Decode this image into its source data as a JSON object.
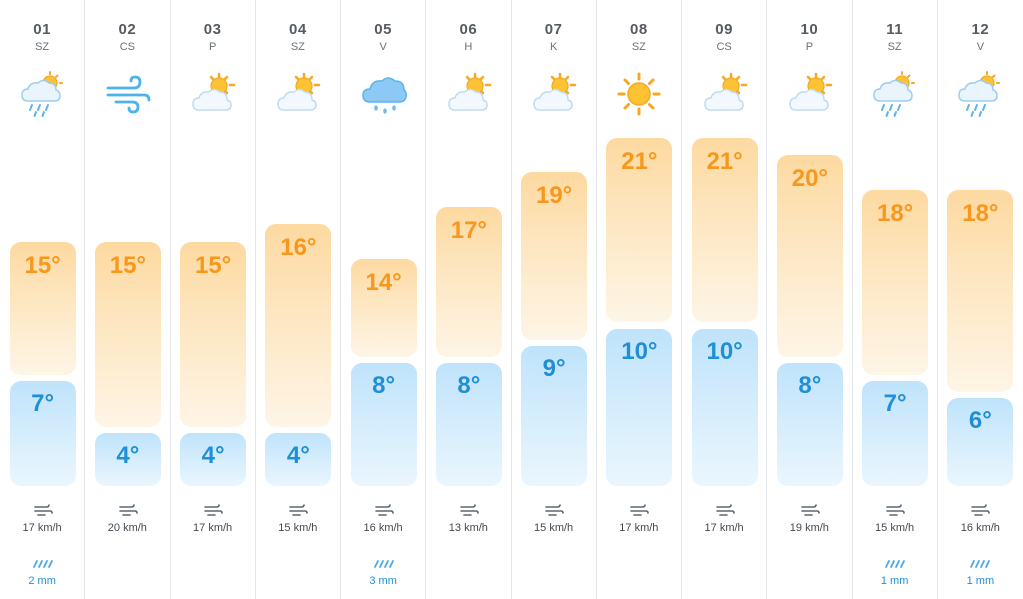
{
  "forecast": {
    "units": {
      "temp": "°",
      "wind": "km/h",
      "rain": "mm"
    },
    "colors": {
      "max_text": "#f7981c",
      "min_text": "#1f8fd6",
      "separator": "#e3e6ea"
    },
    "days": [
      {
        "num": "01",
        "name": "SZ",
        "icon": "rain-cloud-sun-icon",
        "max": "15°",
        "min": "7°",
        "wind": "17 km/h",
        "rain": "2 mm"
      },
      {
        "num": "02",
        "name": "CS",
        "icon": "wind-icon",
        "max": "15°",
        "min": "4°",
        "wind": "20 km/h",
        "rain": ""
      },
      {
        "num": "03",
        "name": "P",
        "icon": "partly-cloudy-icon",
        "max": "15°",
        "min": "4°",
        "wind": "17 km/h",
        "rain": ""
      },
      {
        "num": "04",
        "name": "SZ",
        "icon": "partly-cloudy-icon",
        "max": "16°",
        "min": "4°",
        "wind": "15 km/h",
        "rain": ""
      },
      {
        "num": "05",
        "name": "V",
        "icon": "rain-cloud-icon",
        "max": "14°",
        "min": "8°",
        "wind": "16 km/h",
        "rain": "3 mm"
      },
      {
        "num": "06",
        "name": "H",
        "icon": "partly-cloudy-icon",
        "max": "17°",
        "min": "8°",
        "wind": "13 km/h",
        "rain": ""
      },
      {
        "num": "07",
        "name": "K",
        "icon": "partly-cloudy-icon",
        "max": "19°",
        "min": "9°",
        "wind": "15 km/h",
        "rain": ""
      },
      {
        "num": "08",
        "name": "SZ",
        "icon": "sun-icon",
        "max": "21°",
        "min": "10°",
        "wind": "17 km/h",
        "rain": ""
      },
      {
        "num": "09",
        "name": "CS",
        "icon": "partly-cloudy-icon",
        "max": "21°",
        "min": "10°",
        "wind": "17 km/h",
        "rain": ""
      },
      {
        "num": "10",
        "name": "P",
        "icon": "partly-cloudy-icon",
        "max": "20°",
        "min": "8°",
        "wind": "19 km/h",
        "rain": ""
      },
      {
        "num": "11",
        "name": "SZ",
        "icon": "rain-cloud-sun-icon",
        "max": "18°",
        "min": "7°",
        "wind": "15 km/h",
        "rain": "1 mm"
      },
      {
        "num": "12",
        "name": "V",
        "icon": "rain-cloud-sun-icon",
        "max": "18°",
        "min": "6°",
        "wind": "16 km/h",
        "rain": "1 mm"
      }
    ]
  }
}
